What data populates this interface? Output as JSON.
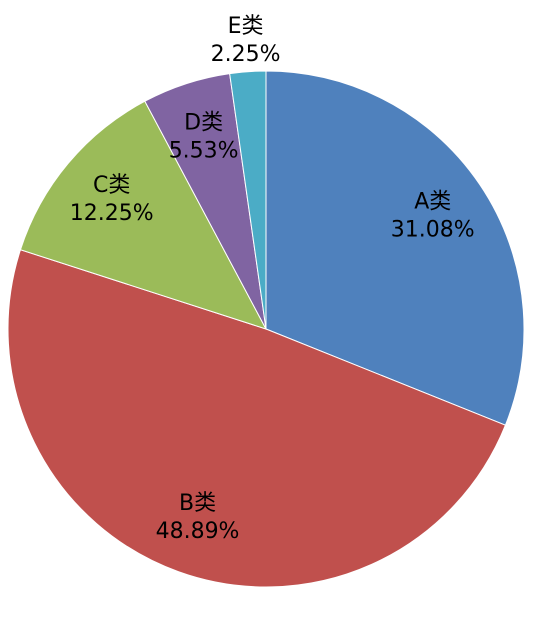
{
  "chart_data": {
    "type": "pie",
    "categories": [
      "A类",
      "B类",
      "C类",
      "D类",
      "E类"
    ],
    "values": [
      31.08,
      48.89,
      12.25,
      5.53,
      2.25
    ],
    "value_labels": [
      "31.08%",
      "48.89%",
      "12.25%",
      "5.53%",
      "2.25%"
    ],
    "colors": [
      "#4f81bd",
      "#c0504d",
      "#9bbb59",
      "#8064a2",
      "#4bacc6"
    ]
  }
}
